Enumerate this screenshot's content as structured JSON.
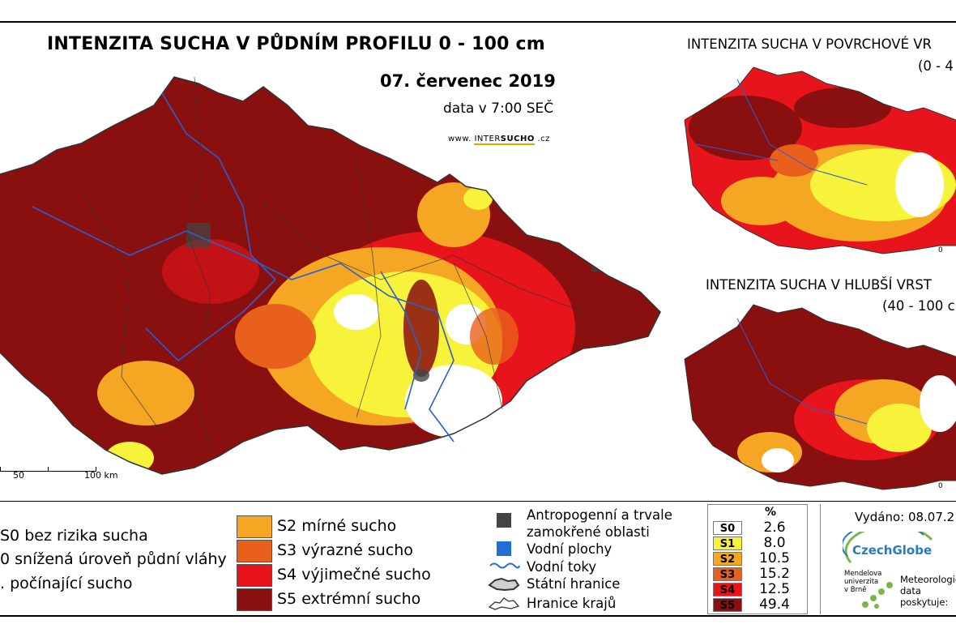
{
  "main_title": "INTENZITA SUCHA V PŮDNÍM PROFILU 0 - 100 cm",
  "date": "07. červenec 2019",
  "data_time": "data v 7:00 SEČ",
  "website": {
    "prefix": "www. ",
    "inter": "INTER",
    "sucho": "SUCHO",
    "suffix": " .cz"
  },
  "top_right_title": "INTENZITA SUCHA V POVRCHOVÉ VR",
  "top_right_sub": "(0 - 4",
  "bottom_right_title": "INTENZITA SUCHA V HLUBŠÍ VRST",
  "bottom_right_sub": "(40 - 100 c",
  "inset_scale_zero": "0",
  "scale": {
    "labels": [
      "50",
      "100 km"
    ]
  },
  "legend_left": [
    "S0 bez rizika sucha",
    "0 snížená úroveň půdní vláhy",
    ". počínající sucho"
  ],
  "legend_mid": [
    {
      "label": "S2 mírné sucho",
      "color": "#f5a623"
    },
    {
      "label": "S3 výrazné sucho",
      "color": "#e8601c"
    },
    {
      "label": "S4 výjimečné sucho",
      "color": "#e8141b"
    },
    {
      "label": "S5 extrémní sucho",
      "color": "#8a0f0f"
    }
  ],
  "legend_symbols": {
    "anthro_line1": "Antropogenní a trvale",
    "anthro_line2": "zamokřené oblasti",
    "water_bodies": "Vodní plochy",
    "rivers": "Vodní toky",
    "state_border": "Státní hranice",
    "region_border": "Hranice krajů",
    "anthro_color": "#444444",
    "water_color": "#1f6fd6"
  },
  "percent_table": {
    "header": "%",
    "rows": [
      {
        "code": "S0",
        "value": "2.6",
        "color": "#ffffff"
      },
      {
        "code": "S1",
        "value": "8.0",
        "color": "#f7f23a"
      },
      {
        "code": "S2",
        "value": "10.5",
        "color": "#f5a623"
      },
      {
        "code": "S3",
        "value": "15.2",
        "color": "#e8601c"
      },
      {
        "code": "S4",
        "value": "12.5",
        "color": "#e8141b"
      },
      {
        "code": "S5",
        "value": "49.4",
        "color": "#8a0f0f"
      }
    ]
  },
  "issued": "Vydáno: 08.07.2",
  "czechglobe": "CzechGlobe",
  "mendel": [
    "Mendelova",
    "univerzita",
    "v Brně"
  ],
  "meteo": [
    "Meteorologic",
    "data",
    "poskytuje:"
  ]
}
